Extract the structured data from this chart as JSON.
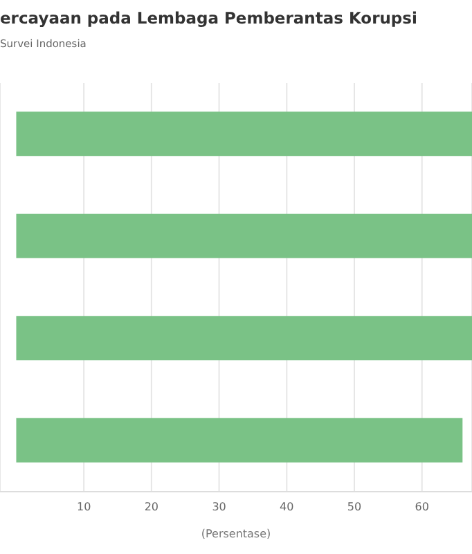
{
  "chart_data": {
    "type": "bar",
    "orientation": "horizontal",
    "title": "ercayaan pada Lembaga Pemberantas Korupsi",
    "subtitle": "Survei Indonesia",
    "xlabel": "(Persentase)",
    "categories": [
      null,
      null,
      null,
      null
    ],
    "values": [
      67.4,
      67.4,
      67.4,
      66
    ],
    "color": "#7ac286",
    "xlim": [
      -2.4,
      67.4
    ],
    "xticks": [
      10,
      20,
      30,
      40,
      50,
      60
    ],
    "grid": "x",
    "legend": false
  }
}
